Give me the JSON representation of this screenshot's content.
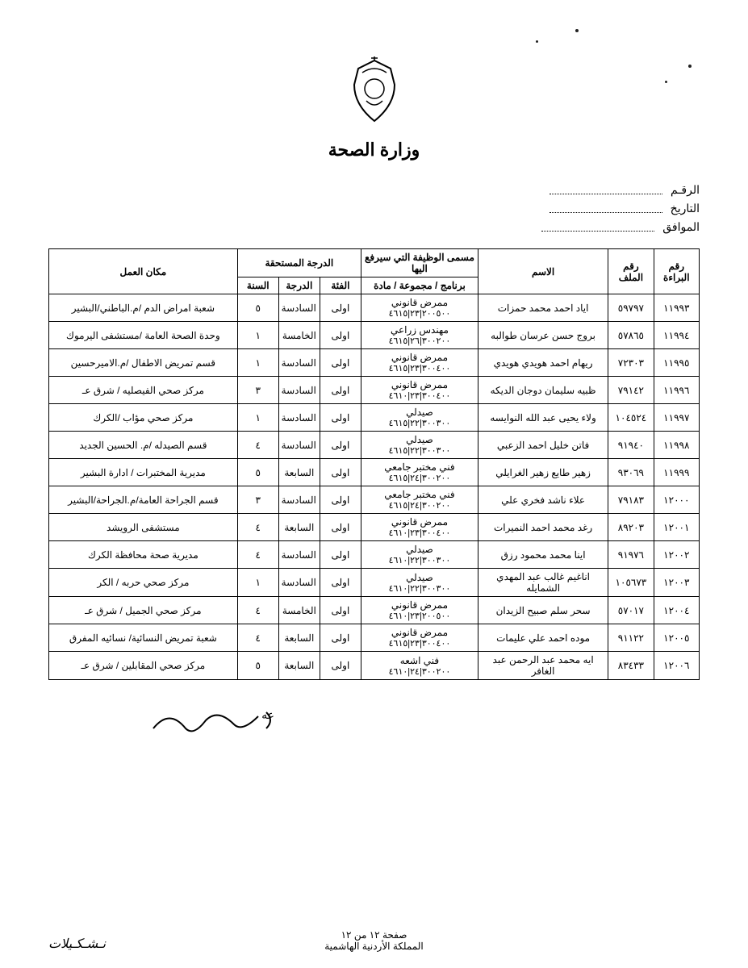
{
  "ministry_title": "وزارة الصحة",
  "meta": {
    "number_label": "الرقـم",
    "date_label": "التاريخ",
    "approval_label": "الموافق"
  },
  "table": {
    "headers": {
      "baraa": "رقم البراءة",
      "file": "رقم الملف",
      "name": "الاسم",
      "job_group": "مسمى الوظيفة التي سيرفع اليها",
      "job_sub": "برنامج / مجموعة / مادة",
      "grade_group": "الدرجة المستحقة",
      "category": "الفئة",
      "grade": "الدرجة",
      "year": "السنة",
      "workplace": "مكان العمل"
    },
    "rows": [
      {
        "baraa": "١١٩٩٣",
        "file": "٥٩٧٩٧",
        "name": "اياد احمد محمد حمزات",
        "job": "ممرض قانوني",
        "code": "٢٠٠٥٠٠|٢٣|٤٦١٥",
        "cat": "اولى",
        "grade": "السادسة",
        "year": "٥",
        "place": "شعبة امراض الدم   /م.الباطني/البشير"
      },
      {
        "baraa": "١١٩٩٤",
        "file": "٥٧٨٦٥",
        "name": "بروج حسن عرسان طوالبه",
        "job": "مهندس زراعي",
        "code": "٣٠٠٢٠٠|٢٦|٤٦١٥",
        "cat": "اولى",
        "grade": "الخامسة",
        "year": "١",
        "place": "وحدة الصحة العامة   /مستشفى اليرموك"
      },
      {
        "baraa": "١١٩٩٥",
        "file": "٧٢٣٠٣",
        "name": "ريهام احمد هويدي هويدي",
        "job": "ممرض قانوني",
        "code": "٣٠٠٤٠٠|٢٣|٤٦١٥",
        "cat": "اولى",
        "grade": "السادسة",
        "year": "١",
        "place": "قسم تمريض الاطفال   /م.الاميرحسين"
      },
      {
        "baraa": "١١٩٩٦",
        "file": "٧٩١٤٢",
        "name": "ظبيه سليمان دوجان الديكه",
        "job": "ممرض قانوني",
        "code": "٣٠٠٤٠٠|٢٣|٤٦١٠",
        "cat": "اولى",
        "grade": "السادسة",
        "year": "٣",
        "place": "مركز صحي الفيصليه     / شرق عـ"
      },
      {
        "baraa": "١١٩٩٧",
        "file": "١٠٤٥٢٤",
        "name": "ولاء يحيى عبد الله النوايسه",
        "job": "صيدلي",
        "code": "٣٠٠٣٠٠|٢٢|٤٦١٥",
        "cat": "اولى",
        "grade": "السادسة",
        "year": "١",
        "place": "مركز صحي مؤاب        /الكرك"
      },
      {
        "baraa": "١١٩٩٨",
        "file": "٩١٩٤٠",
        "name": "فاتن خليل احمد الزعبي",
        "job": "صيدلي",
        "code": "٣٠٠٣٠٠|٢٢|٤٦١٥",
        "cat": "اولى",
        "grade": "السادسة",
        "year": "٤",
        "place": "قسم الصيدله      /م. الحسين الجديد"
      },
      {
        "baraa": "١١٩٩٩",
        "file": "٩٣٠٦٩",
        "name": "زهير طايع زهير الغرايلي",
        "job": "فني مختبر جامعي",
        "code": "٣٠٠٢٠٠|٢٤|٤٦١٥",
        "cat": "اولى",
        "grade": "السابعة",
        "year": "٥",
        "place": "مديرية المختبرات / ادارة البشير"
      },
      {
        "baraa": "١٢٠٠٠",
        "file": "٧٩١٨٣",
        "name": "علاء ناشد فخري علي",
        "job": "فني مختبر جامعي",
        "code": "٣٠٠٢٠٠|٢٤|٤٦١٥",
        "cat": "اولى",
        "grade": "السادسة",
        "year": "٣",
        "place": "قسم الجراحة العامة/م.الجراحة/البشير"
      },
      {
        "baraa": "١٢٠٠١",
        "file": "٨٩٢٠٣",
        "name": "رغد محمد احمد النميرات",
        "job": "ممرض قانوني",
        "code": "٣٠٠٤٠٠|٢٣|٤٦١٠",
        "cat": "اولى",
        "grade": "السابعة",
        "year": "٤",
        "place": "مستشفى الرويشد"
      },
      {
        "baraa": "١٢٠٠٢",
        "file": "٩١٩٧٦",
        "name": "اينا محمد محمود رزق",
        "job": "صيدلي",
        "code": "٣٠٠٣٠٠|٢٢|٤٦١٠",
        "cat": "اولى",
        "grade": "السادسة",
        "year": "٤",
        "place": "مديرية صحة محافظة الكرك"
      },
      {
        "baraa": "١٢٠٠٣",
        "file": "١٠٥٦٧٣",
        "name": "اناغيم غالب عبد المهدي الشمايله",
        "job": "صيدلي",
        "code": "٣٠٠٣٠٠|٢٢|٤٦١٠",
        "cat": "اولى",
        "grade": "السادسة",
        "year": "١",
        "place": "مركز صحي حربه       / الكر"
      },
      {
        "baraa": "١٢٠٠٤",
        "file": "٥٧٠١٧",
        "name": "سحر سلم صبيح الزيدان",
        "job": "ممرض قانوني",
        "code": "٢٠٠٥٠٠|٢٣|٤٦١٠",
        "cat": "اولى",
        "grade": "الخامسة",
        "year": "٤",
        "place": "مركز صحي الجميل     / شرق عـ"
      },
      {
        "baraa": "١٢٠٠٥",
        "file": "٩١١٢٢",
        "name": "موده احمد علي عليمات",
        "job": "ممرض قانوني",
        "code": "٣٠٠٤٠٠|٢٣|٤٦١٥",
        "cat": "اولى",
        "grade": "السابعة",
        "year": "٤",
        "place": "شعبة تمريض النسائية/ نسائيه المفرق"
      },
      {
        "baraa": "١٢٠٠٦",
        "file": "٨٣٤٣٣",
        "name": "ايه محمد عبد الرحمن عبد الغافر",
        "job": "فني اشعه",
        "code": "٣٠٠٢٠٠|٢٤|٤٦١٠",
        "cat": "اولى",
        "grade": "السابعة",
        "year": "٥",
        "place": "مركز صحي المقابلين   / شرق عـ"
      }
    ]
  },
  "footer": {
    "page_line": "صفحة ١٢ من ١٢",
    "kingdom": "المملكة الأردنية الهاشمية",
    "stamp": "نـشـكـيلات"
  }
}
